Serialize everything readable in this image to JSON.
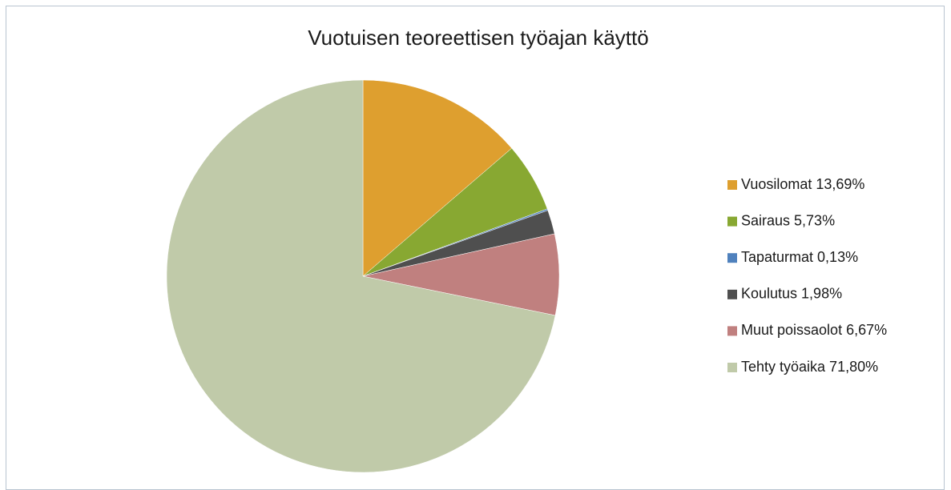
{
  "chart_data": {
    "type": "pie",
    "title": "Vuotuisen teoreettisen työajan käyttö",
    "categories": [
      "Vuosilomat 13,69%",
      "Sairaus 5,73%",
      "Tapaturmat 0,13%",
      "Koulutus 1,98%",
      "Muut poissaolot 6,67%",
      "Tehty työaika 71,80%"
    ],
    "values": [
      13.69,
      5.73,
      0.13,
      1.98,
      6.67,
      71.8
    ],
    "colors": [
      "#de9f2f",
      "#88a832",
      "#4f81bd",
      "#4f4f4f",
      "#c0807f",
      "#c0caa9"
    ],
    "legend": "right"
  }
}
